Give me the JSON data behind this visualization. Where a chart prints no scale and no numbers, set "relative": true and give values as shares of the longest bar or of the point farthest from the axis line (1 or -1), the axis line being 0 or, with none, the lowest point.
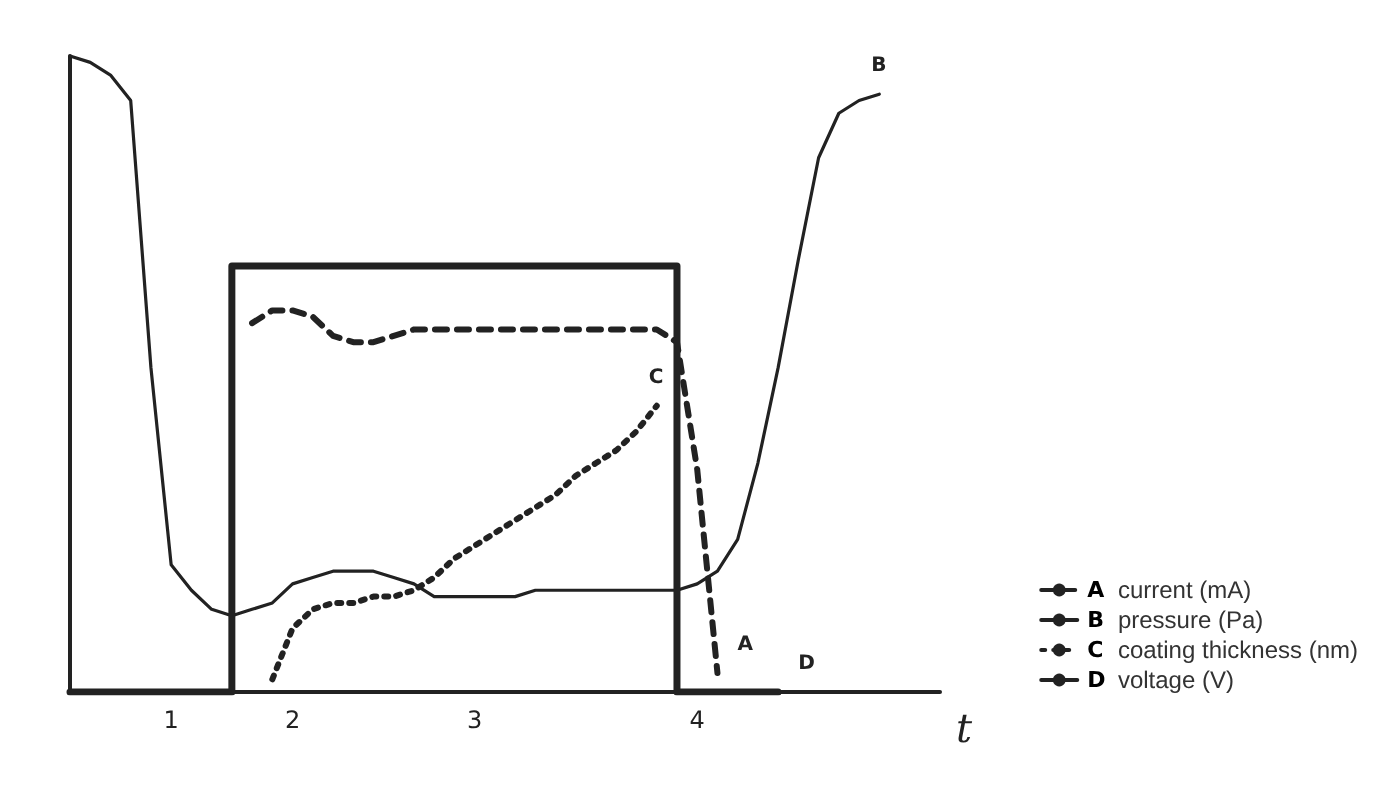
{
  "chart_data": {
    "type": "line",
    "relative": true,
    "xlabel": "t",
    "legend": "right",
    "marker": "none",
    "grid": false,
    "categories": [
      null,
      null,
      null,
      null,
      null,
      "1",
      null,
      null,
      null,
      null,
      null,
      "2",
      null,
      null,
      null,
      null,
      null,
      null,
      null,
      null,
      "3",
      null,
      null,
      null,
      null,
      null,
      null,
      null,
      null,
      null,
      null,
      "4",
      null,
      null,
      null,
      null,
      null,
      null,
      null,
      null,
      null,
      null,
      null,
      null
    ],
    "annotations": [
      "A",
      "B",
      "C",
      "D"
    ],
    "series": [
      {
        "name": "current (mA)",
        "color": "#222222",
        "line_style": "dashed",
        "values": [
          null,
          null,
          null,
          null,
          null,
          null,
          null,
          null,
          null,
          0.58,
          0.6,
          0.6,
          0.59,
          0.56,
          0.55,
          0.55,
          0.56,
          0.57,
          0.57,
          0.57,
          0.57,
          0.57,
          0.57,
          0.57,
          0.57,
          0.57,
          0.57,
          0.57,
          0.57,
          0.57,
          0.55,
          0.35,
          0.03,
          null,
          null,
          null,
          null,
          null,
          null,
          null,
          null,
          null,
          null,
          null
        ]
      },
      {
        "name": "pressure (Pa)",
        "color": "#222222",
        "line_style": "solid",
        "values": [
          1,
          0.99,
          0.97,
          0.93,
          0.51,
          0.2,
          0.16,
          0.13,
          0.12,
          0.13,
          0.14,
          0.17,
          0.18,
          0.19,
          0.19,
          0.19,
          0.18,
          0.17,
          0.15,
          0.15,
          0.15,
          0.15,
          0.15,
          0.16,
          0.16,
          0.16,
          0.16,
          0.16,
          0.16,
          0.16,
          0.16,
          0.17,
          0.19,
          0.24,
          0.36,
          0.51,
          0.68,
          0.84,
          0.91,
          0.93,
          0.94,
          null,
          null,
          null
        ]
      },
      {
        "name": "coating thickness (nm)",
        "color": "#222222",
        "line_style": "dotted",
        "values": [
          null,
          null,
          null,
          null,
          null,
          null,
          null,
          null,
          null,
          null,
          0.02,
          0.1,
          0.13,
          0.14,
          0.14,
          0.15,
          0.15,
          0.16,
          0.18,
          0.21,
          0.23,
          0.25,
          0.27,
          0.29,
          0.31,
          0.34,
          0.36,
          0.38,
          0.41,
          0.45,
          null,
          null,
          null,
          null,
          null,
          null,
          null,
          null,
          null,
          null,
          null,
          null,
          null,
          null
        ]
      },
      {
        "name": "voltage (V)",
        "color": "#222222",
        "type": "step",
        "line_style": "solid",
        "values": [
          0,
          0,
          0,
          0,
          0,
          0,
          0,
          0,
          0,
          0.67,
          0.67,
          0.67,
          0.67,
          0.67,
          0.67,
          0.67,
          0.67,
          0.67,
          0.67,
          0.67,
          0.67,
          0.67,
          0.67,
          0.67,
          0.67,
          0.67,
          0.67,
          0.67,
          0.67,
          0.67,
          0.67,
          0,
          0,
          0,
          0,
          0,
          null,
          null,
          null,
          null,
          null,
          null,
          null,
          null
        ]
      }
    ]
  }
}
